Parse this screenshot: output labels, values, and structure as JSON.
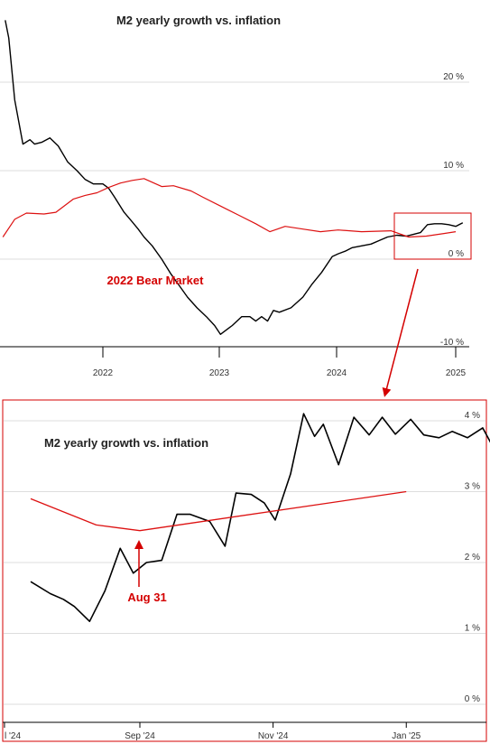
{
  "chart_data": [
    {
      "type": "line",
      "title": "M2 yearly growth vs. inflation",
      "x_ticks": [
        "2022",
        "2023",
        "2024",
        "2025"
      ],
      "y_ticks": [
        "20 %",
        "10 %",
        "0 %",
        "-10 %"
      ],
      "ylim": [
        -10,
        30
      ],
      "xlim": [
        2021.15,
        2025.08
      ],
      "grid": "horizontal",
      "series": [
        {
          "color": "#000000",
          "x": [
            2021.17,
            2021.2,
            2021.25,
            2021.32,
            2021.38,
            2021.42,
            2021.48,
            2021.55,
            2021.62,
            2021.7,
            2021.78,
            2021.85,
            2021.92,
            2022.0,
            2022.05,
            2022.1,
            2022.18,
            2022.25,
            2022.3,
            2022.35,
            2022.42,
            2022.5,
            2022.58,
            2022.65,
            2022.72,
            2022.8,
            2022.88,
            2022.95,
            2023.0,
            2023.1,
            2023.18,
            2023.25,
            2023.3,
            2023.35,
            2023.4,
            2023.45,
            2023.5,
            2023.6,
            2023.7,
            2023.78,
            2023.86,
            2023.95,
            2024.0,
            2024.06,
            2024.12,
            2024.2,
            2024.28,
            2024.35,
            2024.42,
            2024.5,
            2024.58,
            2024.64,
            2024.7,
            2024.76,
            2024.82,
            2024.88,
            2024.94,
            2025.0,
            2025.06
          ],
          "y": [
            27,
            25,
            18,
            13,
            13.5,
            13,
            13.2,
            13.7,
            12.8,
            11,
            10,
            9,
            8.5,
            8.5,
            8,
            7,
            5.3,
            4.2,
            3.4,
            2.5,
            1.5,
            0,
            -1.7,
            -3,
            -4.3,
            -5.5,
            -6.5,
            -7.5,
            -8.5,
            -7.5,
            -6.5,
            -6.5,
            -7,
            -6.5,
            -7,
            -5.8,
            -6,
            -5.5,
            -4.3,
            -2.8,
            -1.5,
            0.3,
            0.6,
            0.9,
            1.3,
            1.5,
            1.7,
            2.1,
            2.5,
            2.7,
            2.6,
            2.8,
            3.0,
            3.9,
            4.0,
            4.0,
            3.9,
            3.7,
            4.1
          ]
        },
        {
          "color": "#dd1111",
          "x": [
            2021.15,
            2021.25,
            2021.35,
            2021.5,
            2021.6,
            2021.75,
            2021.85,
            2021.95,
            2022.05,
            2022.15,
            2022.25,
            2022.35,
            2022.5,
            2022.6,
            2022.75,
            2022.85,
            2023.0,
            2023.15,
            2023.3,
            2023.42,
            2023.55,
            2023.7,
            2023.85,
            2024.0,
            2024.2,
            2024.45,
            2024.6,
            2024.75,
            2024.9,
            2025.0
          ],
          "y": [
            2.5,
            4.5,
            5.2,
            5.1,
            5.3,
            6.8,
            7.2,
            7.5,
            8.1,
            8.6,
            8.9,
            9.1,
            8.2,
            8.3,
            7.7,
            7.0,
            6.0,
            5.0,
            4.0,
            3.1,
            3.7,
            3.4,
            3.1,
            3.3,
            3.1,
            3.2,
            2.5,
            2.6,
            2.9,
            3.1
          ]
        }
      ],
      "annotations": [
        {
          "text": "2022 Bear Market",
          "color": "#d40000"
        }
      ]
    },
    {
      "type": "line",
      "title": "M2 yearly growth vs. inflation",
      "x_ticks": [
        "l '24",
        "Sep '24",
        "Nov '24",
        "Jan '25"
      ],
      "y_ticks": [
        "4 %",
        "3 %",
        "2 %",
        "1 %",
        "0 %"
      ],
      "ylim": [
        0,
        4.2
      ],
      "grid": "horizontal",
      "series": [
        {
          "color": "#000000",
          "x_days": [
            -50,
            -41,
            -35,
            -30,
            -23,
            -16,
            -9,
            -3,
            3,
            10,
            17,
            23,
            32,
            39,
            44,
            51,
            57,
            62,
            69,
            75,
            80,
            84,
            91,
            98,
            105,
            111,
            117,
            124,
            130,
            137,
            143,
            150,
            157,
            164,
            170,
            173
          ],
          "y": [
            1.73,
            1.56,
            1.48,
            1.38,
            1.17,
            1.6,
            2.2,
            1.85,
            2.0,
            2.03,
            2.68,
            2.68,
            2.58,
            2.23,
            2.98,
            2.96,
            2.84,
            2.6,
            3.25,
            4.1,
            3.78,
            3.95,
            3.38,
            4.05,
            3.8,
            4.05,
            3.81,
            4.02,
            3.8,
            3.76,
            3.85,
            3.76,
            3.9,
            3.5,
            3.7,
            4.05
          ]
        },
        {
          "color": "#dd1111",
          "x_days": [
            -50,
            -20,
            0,
            122
          ],
          "y": [
            2.9,
            2.53,
            2.45,
            3.0
          ]
        }
      ],
      "annotations": [
        {
          "text": "Aug 31",
          "color": "#d40000"
        }
      ]
    }
  ]
}
